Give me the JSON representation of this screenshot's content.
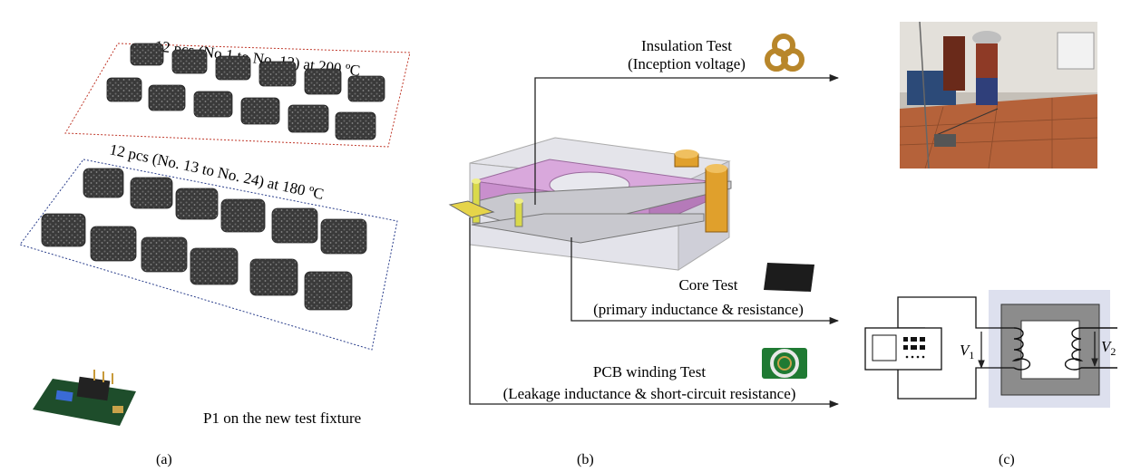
{
  "panel_a": {
    "group1_label": "12 pcs (No.1 to No. 12) at 200 ºC",
    "group1_color": "#b22222",
    "group2_label": "12 pcs (No. 13 to No. 24) at 180 ºC",
    "group2_color": "#2b3f8c",
    "fixture_caption": "P1 on the new test fixture",
    "sub_label": "(a)"
  },
  "panel_b": {
    "insulation_title": "Insulation Test",
    "insulation_sub": "(Inception voltage)",
    "core_title": "Core Test",
    "core_sub": "(primary inductance & resistance)",
    "pcb_title": "PCB winding Test",
    "pcb_sub": "(Leakage inductance & short-circuit resistance)",
    "sub_label": "(b)",
    "core_color": "#d9a8dc"
  },
  "panel_c": {
    "v1_label": "V",
    "v1_sub": "1",
    "v2_label": "V",
    "v2_sub": "2",
    "sub_label": "(c)",
    "core_color": "#8c8c8c",
    "bg_color": "#dde0ee"
  }
}
